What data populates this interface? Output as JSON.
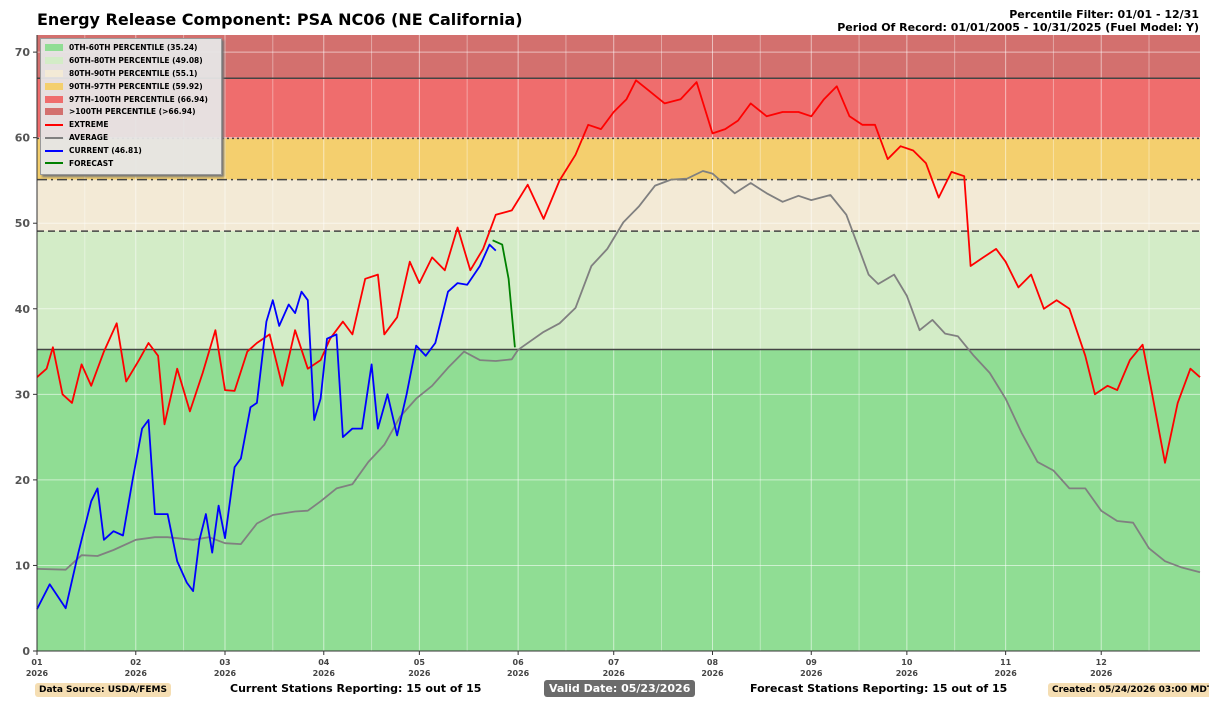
{
  "header": {
    "title": "Energy Release Component: PSA NC06 (NE California)",
    "filter": "Percentile Filter: 01/01 - 12/31",
    "period": "Period Of Record: 01/01/2005 - 10/31/2025 (Fuel Model: Y)"
  },
  "footer": {
    "data_source": "Data Source: USDA/FEMS",
    "current_stations": "Current Stations Reporting: 15 out of 15",
    "valid_date": "Valid Date: 05/23/2026",
    "forecast_stations": "Forecast Stations Reporting: 15 out of 15",
    "created": "Created: 05/24/2026 03:00 MDT"
  },
  "legend": [
    {
      "label": "0TH-60TH PERCENTILE (35.24)",
      "kind": "box",
      "color": "#90dd94"
    },
    {
      "label": "60TH-80TH PERCENTILE (49.08)",
      "kind": "box",
      "color": "#d3ecc7"
    },
    {
      "label": "80TH-90TH PERCENTILE (55.1)",
      "kind": "box",
      "color": "#f3ead6"
    },
    {
      "label": "90TH-97TH PERCENTILE (59.92)",
      "kind": "box",
      "color": "#f4cf6e"
    },
    {
      "label": "97TH-100TH PERCENTILE (66.94)",
      "kind": "box",
      "color": "#ef6d6d"
    },
    {
      "label": ">100TH PERCENTILE (>66.94)",
      "kind": "box",
      "color": "#d3706e"
    },
    {
      "label": "EXTREME",
      "kind": "line",
      "color": "#ff0000"
    },
    {
      "label": "AVERAGE",
      "kind": "line",
      "color": "#808080"
    },
    {
      "label": "CURRENT (46.81)",
      "kind": "line",
      "color": "#0000ff"
    },
    {
      "label": "FORECAST",
      "kind": "line",
      "color": "#008000"
    }
  ],
  "chart_data": {
    "type": "line",
    "ylim": [
      0,
      72
    ],
    "yticks": [
      0,
      10,
      20,
      30,
      40,
      50,
      60,
      70
    ],
    "x_domain_days": [
      1,
      366
    ],
    "months": [
      "01",
      "02",
      "03",
      "04",
      "05",
      "06",
      "07",
      "08",
      "09",
      "10",
      "11",
      "12"
    ],
    "month_start_days": [
      1,
      32,
      60,
      91,
      121,
      152,
      182,
      213,
      244,
      274,
      305,
      335
    ],
    "year_label": "2026",
    "grid": true,
    "percentile_bands": [
      {
        "from": 0,
        "to": 35.24,
        "color": "#90dd94"
      },
      {
        "from": 35.24,
        "to": 49.08,
        "color": "#d3ecc7"
      },
      {
        "from": 49.08,
        "to": 55.1,
        "color": "#f3ead6"
      },
      {
        "from": 55.1,
        "to": 59.92,
        "color": "#f4cf6e"
      },
      {
        "from": 59.92,
        "to": 66.94,
        "color": "#ef6d6d"
      },
      {
        "from": 66.94,
        "to": 72,
        "color": "#d3706e"
      }
    ],
    "threshold_lines": [
      {
        "value": 35.24,
        "style": "solid"
      },
      {
        "value": 49.08,
        "style": "dashed"
      },
      {
        "value": 55.1,
        "style": "dashdot"
      },
      {
        "value": 59.92,
        "style": "dotted"
      },
      {
        "value": 66.94,
        "style": "solid"
      }
    ],
    "series": [
      {
        "name": "AVERAGE",
        "color": "#808080",
        "points": [
          [
            1,
            9.6
          ],
          [
            10,
            9.5
          ],
          [
            15,
            11.2
          ],
          [
            20,
            11.1
          ],
          [
            25,
            11.8
          ],
          [
            32,
            13
          ],
          [
            38,
            13.3
          ],
          [
            42,
            13.3
          ],
          [
            50,
            13
          ],
          [
            55,
            13.3
          ],
          [
            60,
            12.6
          ],
          [
            65,
            12.5
          ],
          [
            70,
            14.9
          ],
          [
            75,
            15.9
          ],
          [
            82,
            16.3
          ],
          [
            86,
            16.4
          ],
          [
            90,
            17.5
          ],
          [
            95,
            19
          ],
          [
            100,
            19.5
          ],
          [
            105,
            22.1
          ],
          [
            110,
            24.1
          ],
          [
            115,
            27.4
          ],
          [
            120,
            29.5
          ],
          [
            125,
            31
          ],
          [
            130,
            33.1
          ],
          [
            135,
            35
          ],
          [
            140,
            34
          ],
          [
            145,
            33.9
          ],
          [
            150,
            34.1
          ],
          [
            152,
            35.2
          ],
          [
            160,
            37.3
          ],
          [
            165,
            38.3
          ],
          [
            170,
            40.1
          ],
          [
            175,
            45
          ],
          [
            180,
            47
          ],
          [
            185,
            50.1
          ],
          [
            190,
            52
          ],
          [
            195,
            54.4
          ],
          [
            200,
            55.1
          ],
          [
            205,
            55.2
          ],
          [
            210,
            56.1
          ],
          [
            213,
            55.8
          ],
          [
            220,
            53.5
          ],
          [
            225,
            54.7
          ],
          [
            230,
            53.5
          ],
          [
            235,
            52.5
          ],
          [
            240,
            53.2
          ],
          [
            244,
            52.7
          ],
          [
            250,
            53.3
          ],
          [
            255,
            51
          ],
          [
            258,
            48
          ],
          [
            262,
            44
          ],
          [
            265,
            42.9
          ],
          [
            270,
            44
          ],
          [
            274,
            41.5
          ],
          [
            278,
            37.5
          ],
          [
            282,
            38.7
          ],
          [
            286,
            37.1
          ],
          [
            290,
            36.8
          ],
          [
            295,
            34.5
          ],
          [
            300,
            32.5
          ],
          [
            305,
            29.5
          ],
          [
            310,
            25.5
          ],
          [
            315,
            22.1
          ],
          [
            320,
            21.1
          ],
          [
            325,
            19
          ],
          [
            330,
            19
          ],
          [
            335,
            16.4
          ],
          [
            340,
            15.2
          ],
          [
            345,
            15
          ],
          [
            350,
            12
          ],
          [
            355,
            10.5
          ],
          [
            360,
            9.8
          ],
          [
            366,
            9.2
          ]
        ]
      },
      {
        "name": "EXTREME",
        "color": "#ff0000",
        "points": [
          [
            1,
            32
          ],
          [
            4,
            33
          ],
          [
            6,
            35.5
          ],
          [
            9,
            30
          ],
          [
            12,
            29
          ],
          [
            15,
            33.5
          ],
          [
            18,
            31
          ],
          [
            22,
            35
          ],
          [
            26,
            38.3
          ],
          [
            29,
            31.5
          ],
          [
            33,
            34
          ],
          [
            36,
            36
          ],
          [
            39,
            34.5
          ],
          [
            41,
            26.5
          ],
          [
            45,
            33
          ],
          [
            49,
            28
          ],
          [
            53,
            32.5
          ],
          [
            57,
            37.5
          ],
          [
            60,
            30.5
          ],
          [
            63,
            30.4
          ],
          [
            67,
            35
          ],
          [
            70,
            36
          ],
          [
            74,
            37
          ],
          [
            78,
            31
          ],
          [
            82,
            37.5
          ],
          [
            86,
            33
          ],
          [
            90,
            34
          ],
          [
            93,
            36.5
          ],
          [
            97,
            38.5
          ],
          [
            100,
            37
          ],
          [
            104,
            43.5
          ],
          [
            108,
            44
          ],
          [
            110,
            37
          ],
          [
            114,
            39
          ],
          [
            118,
            45.5
          ],
          [
            121,
            43
          ],
          [
            125,
            46
          ],
          [
            129,
            44.5
          ],
          [
            133,
            49.5
          ],
          [
            137,
            44.5
          ],
          [
            141,
            47
          ],
          [
            145,
            51
          ],
          [
            150,
            51.5
          ],
          [
            155,
            54.5
          ],
          [
            160,
            50.5
          ],
          [
            165,
            55
          ],
          [
            170,
            58
          ],
          [
            174,
            61.5
          ],
          [
            178,
            61
          ],
          [
            182,
            63
          ],
          [
            186,
            64.5
          ],
          [
            189,
            66.7
          ],
          [
            193,
            65.5
          ],
          [
            198,
            64
          ],
          [
            203,
            64.5
          ],
          [
            208,
            66.5
          ],
          [
            213,
            60.5
          ],
          [
            217,
            61
          ],
          [
            221,
            62
          ],
          [
            225,
            64
          ],
          [
            230,
            62.5
          ],
          [
            235,
            63
          ],
          [
            240,
            63
          ],
          [
            244,
            62.5
          ],
          [
            248,
            64.5
          ],
          [
            252,
            66
          ],
          [
            256,
            62.5
          ],
          [
            260,
            61.5
          ],
          [
            264,
            61.5
          ],
          [
            268,
            57.5
          ],
          [
            272,
            59
          ],
          [
            276,
            58.5
          ],
          [
            280,
            57
          ],
          [
            284,
            53
          ],
          [
            288,
            56
          ],
          [
            292,
            55.5
          ],
          [
            294,
            45
          ],
          [
            298,
            46
          ],
          [
            302,
            47
          ],
          [
            305,
            45.5
          ],
          [
            309,
            42.5
          ],
          [
            313,
            44
          ],
          [
            317,
            40
          ],
          [
            321,
            41
          ],
          [
            325,
            40
          ],
          [
            330,
            34.5
          ],
          [
            333,
            30
          ],
          [
            337,
            31
          ],
          [
            340,
            30.5
          ],
          [
            344,
            34
          ],
          [
            348,
            35.8
          ],
          [
            351,
            30
          ],
          [
            355,
            22
          ],
          [
            359,
            29
          ],
          [
            363,
            33
          ],
          [
            366,
            32
          ]
        ]
      },
      {
        "name": "CURRENT (46.81)",
        "color": "#0000ff",
        "points": [
          [
            1,
            4.9
          ],
          [
            5,
            7.8
          ],
          [
            10,
            5
          ],
          [
            14,
            11.5
          ],
          [
            18,
            17.5
          ],
          [
            20,
            19
          ],
          [
            22,
            13
          ],
          [
            25,
            14
          ],
          [
            28,
            13.5
          ],
          [
            31,
            20
          ],
          [
            34,
            26
          ],
          [
            36,
            27
          ],
          [
            38,
            16
          ],
          [
            42,
            16
          ],
          [
            45,
            10.5
          ],
          [
            48,
            8
          ],
          [
            50,
            7
          ],
          [
            52,
            13
          ],
          [
            54,
            16
          ],
          [
            56,
            11.5
          ],
          [
            58,
            17
          ],
          [
            60,
            13.2
          ],
          [
            63,
            21.5
          ],
          [
            65,
            22.5
          ],
          [
            68,
            28.5
          ],
          [
            70,
            29
          ],
          [
            73,
            38.5
          ],
          [
            75,
            41
          ],
          [
            77,
            38
          ],
          [
            80,
            40.5
          ],
          [
            82,
            39.5
          ],
          [
            84,
            42
          ],
          [
            86,
            41
          ],
          [
            88,
            27
          ],
          [
            90,
            29.5
          ],
          [
            92,
            36.5
          ],
          [
            95,
            37
          ],
          [
            97,
            25
          ],
          [
            100,
            26
          ],
          [
            103,
            26
          ],
          [
            106,
            33.5
          ],
          [
            108,
            26
          ],
          [
            111,
            30
          ],
          [
            114,
            25.2
          ],
          [
            117,
            30
          ],
          [
            120,
            35.7
          ],
          [
            123,
            34.5
          ],
          [
            126,
            36
          ],
          [
            130,
            42
          ],
          [
            133,
            43
          ],
          [
            136,
            42.8
          ],
          [
            140,
            45
          ],
          [
            143,
            47.5
          ],
          [
            145,
            46.8
          ]
        ]
      },
      {
        "name": "FORECAST",
        "color": "#008000",
        "points": [
          [
            144,
            48
          ],
          [
            147,
            47.5
          ],
          [
            149,
            43.5
          ],
          [
            151,
            35.5
          ]
        ]
      }
    ]
  }
}
